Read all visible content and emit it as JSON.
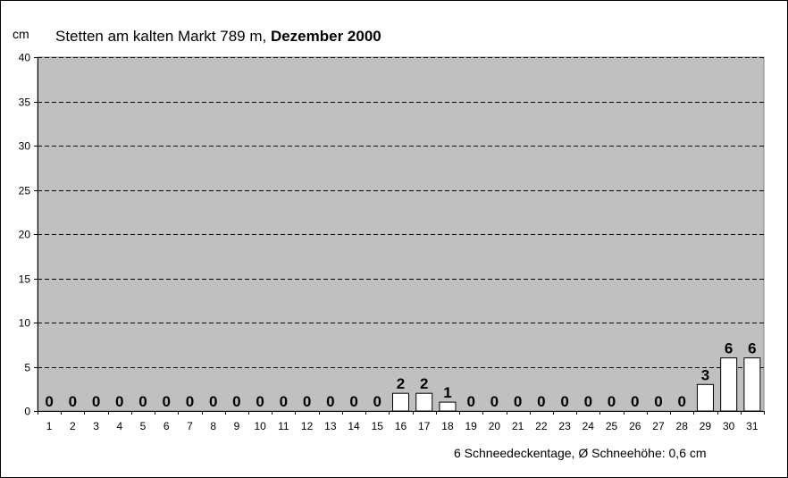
{
  "header": {
    "unit_label": "cm",
    "title_prefix": "Stetten am kalten Markt 789 m,",
    "title_bold": "Dezember 2000"
  },
  "footer": {
    "summary": "6 Schneedeckentage,  Ø Schneehöhe:  0,6 cm"
  },
  "colors": {
    "plot_background": "#c0c0c0",
    "bar_fill": "#ffffff",
    "bar_stroke": "#000000",
    "gridline": "#000000"
  },
  "chart_data": {
    "type": "bar",
    "title": "Stetten am kalten Markt 789 m, Dezember 2000",
    "ylabel": "cm",
    "xlabel": "",
    "ylim": [
      0,
      40
    ],
    "yticks": [
      0,
      5,
      10,
      15,
      20,
      25,
      30,
      35,
      40
    ],
    "grid": true,
    "categories": [
      "1",
      "2",
      "3",
      "4",
      "5",
      "6",
      "7",
      "8",
      "9",
      "10",
      "11",
      "12",
      "13",
      "14",
      "15",
      "16",
      "17",
      "18",
      "19",
      "20",
      "21",
      "22",
      "23",
      "24",
      "25",
      "26",
      "27",
      "28",
      "29",
      "30",
      "31"
    ],
    "values": [
      0,
      0,
      0,
      0,
      0,
      0,
      0,
      0,
      0,
      0,
      0,
      0,
      0,
      0,
      0,
      2,
      2,
      1,
      0,
      0,
      0,
      0,
      0,
      0,
      0,
      0,
      0,
      0,
      3,
      6,
      6
    ]
  }
}
